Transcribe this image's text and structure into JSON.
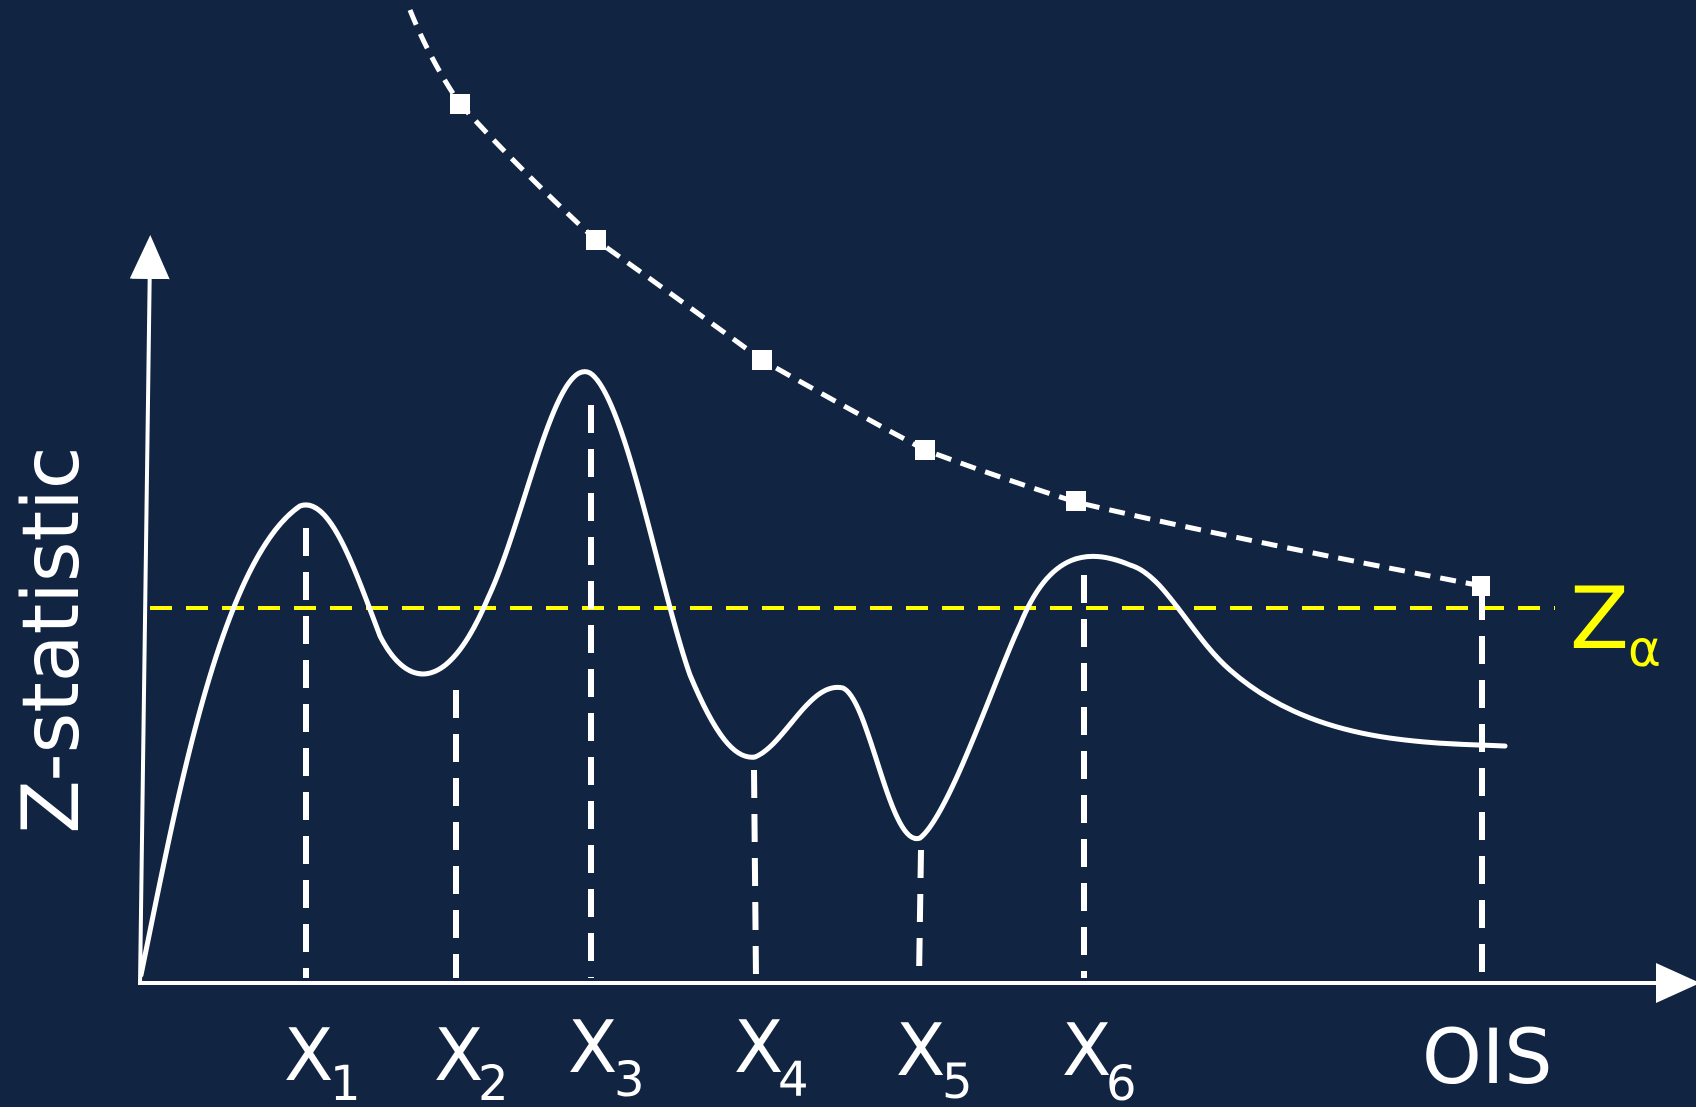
{
  "diagram": {
    "y_axis_label": "Z-statistic",
    "threshold_label": {
      "main": "Z",
      "sub": "α"
    },
    "x_labels": [
      {
        "main": "X",
        "sub": "1"
      },
      {
        "main": "X",
        "sub": "2"
      },
      {
        "main": "X",
        "sub": "3"
      },
      {
        "main": "X",
        "sub": "4"
      },
      {
        "main": "X",
        "sub": "5"
      },
      {
        "main": "X",
        "sub": "6"
      },
      {
        "main": "OIS",
        "sub": ""
      }
    ],
    "colors": {
      "background": "#112442",
      "curves": "#ffffff",
      "threshold": "#ffff00"
    }
  }
}
